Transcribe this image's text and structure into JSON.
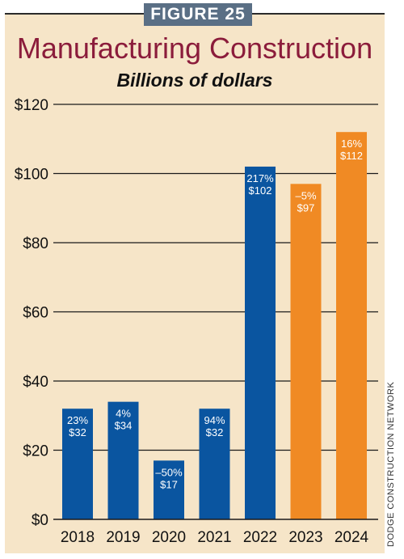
{
  "figure_label": "FIGURE 25",
  "credit": "DODGE CONSTRUCTION NETWORK",
  "colors": {
    "actual": "#0a55a0",
    "forecast": "#f08a24",
    "title": "#8b1c3b",
    "panel": "#f6e5c8"
  },
  "chart_data": {
    "type": "bar",
    "title": "Manufacturing Construction",
    "subtitle": "Billions of dollars",
    "xlabel": "",
    "ylabel": "",
    "ylim": [
      0,
      120
    ],
    "yticks": [
      0,
      20,
      40,
      60,
      80,
      100,
      120
    ],
    "ytick_labels": [
      "$0",
      "$20",
      "$40",
      "$60",
      "$80",
      "$100",
      "$120"
    ],
    "grid": true,
    "categories": [
      "2018",
      "2019",
      "2020",
      "2021",
      "2022",
      "2023",
      "2024"
    ],
    "values": [
      32,
      34,
      17,
      32,
      102,
      97,
      112
    ],
    "value_labels": [
      "$32",
      "$34",
      "$17",
      "$32",
      "$102",
      "$97",
      "$112"
    ],
    "pct_labels": [
      "23%",
      "4%",
      "–50%",
      "94%",
      "217%",
      "–5%",
      "16%"
    ],
    "bar_colors": [
      "#0a55a0",
      "#0a55a0",
      "#0a55a0",
      "#0a55a0",
      "#0a55a0",
      "#f08a24",
      "#f08a24"
    ]
  }
}
